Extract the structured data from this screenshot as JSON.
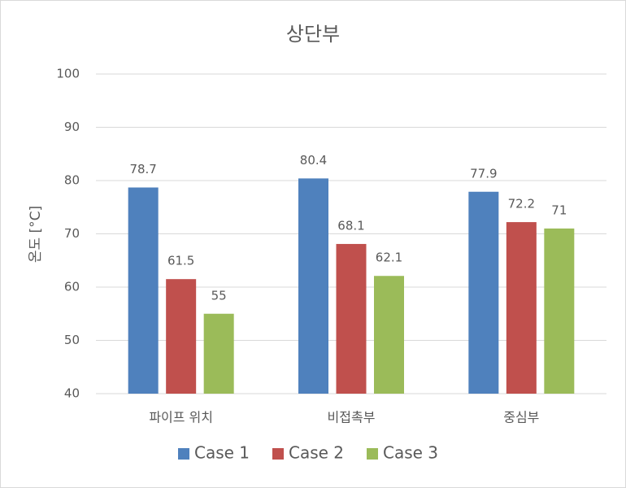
{
  "chart_data": {
    "type": "bar",
    "title": "상단부",
    "y_label": "온도 [°C]",
    "categories": [
      "파이프 위치",
      "비접촉부",
      "중심부"
    ],
    "series": [
      {
        "name": "Case 1",
        "color": "#4f81bd",
        "values": [
          78.7,
          80.4,
          77.9
        ]
      },
      {
        "name": "Case 2",
        "color": "#c0504d",
        "values": [
          61.5,
          68.1,
          72.2
        ]
      },
      {
        "name": "Case 3",
        "color": "#9bbb59",
        "values": [
          55,
          62.1,
          71
        ]
      }
    ],
    "ylim": [
      40,
      100
    ],
    "yticks": [
      40,
      50,
      60,
      70,
      80,
      90,
      100
    ],
    "grid": true,
    "legend": "bottom"
  }
}
